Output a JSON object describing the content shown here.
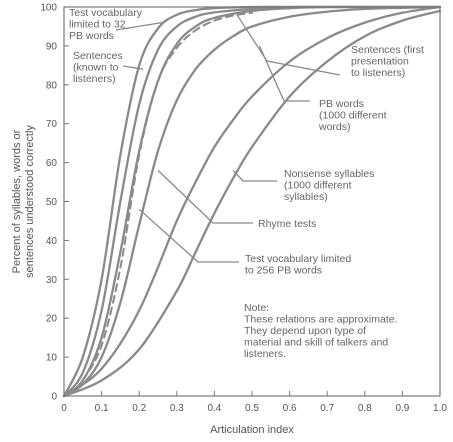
{
  "chart_data": {
    "type": "line",
    "title": "",
    "xlabel": "Articulation index",
    "ylabel_lines": [
      "Percent of syllables, words or",
      "sentences understood correctly"
    ],
    "xlim": [
      0,
      1.0
    ],
    "ylim": [
      0,
      100
    ],
    "x_ticks": [
      "0",
      "0.1",
      "0.2",
      "0.3",
      "0.4",
      "0.5",
      "0.6",
      "0.7",
      "0.8",
      "0.9",
      "1.0"
    ],
    "y_ticks": [
      "0",
      "10",
      "20",
      "30",
      "40",
      "50",
      "60",
      "70",
      "80",
      "90",
      "100"
    ],
    "grid": false,
    "series": [
      {
        "key": "vocab32",
        "style": "solid",
        "x": [
          0,
          0.05,
          0.1,
          0.15,
          0.2,
          0.25,
          0.3,
          0.35,
          0.4,
          0.5,
          0.6,
          0.7,
          0.8,
          1.0
        ],
        "y": [
          0,
          10,
          30,
          62,
          85,
          94.5,
          98,
          99.2,
          99.7,
          100,
          100,
          100,
          100,
          100
        ]
      },
      {
        "key": "sentences_known",
        "style": "solid",
        "x": [
          0,
          0.05,
          0.1,
          0.15,
          0.2,
          0.25,
          0.3,
          0.35,
          0.4,
          0.5,
          0.6,
          0.7,
          0.8,
          1.0
        ],
        "y": [
          0,
          6,
          22,
          50,
          75,
          89,
          95,
          97.5,
          98.6,
          99.5,
          100,
          100,
          100,
          100
        ]
      },
      {
        "key": "sentences_first",
        "style": "solid",
        "x": [
          0,
          0.05,
          0.1,
          0.15,
          0.2,
          0.25,
          0.3,
          0.35,
          0.4,
          0.5,
          0.6,
          0.7,
          0.8,
          1.0
        ],
        "y": [
          0,
          4,
          15,
          37,
          63,
          81,
          90.5,
          95,
          97.2,
          99,
          99.7,
          100,
          100,
          100
        ]
      },
      {
        "key": "rhyme",
        "style": "dashed",
        "x": [
          0.05,
          0.1,
          0.15,
          0.2,
          0.25,
          0.3,
          0.35,
          0.4,
          0.45,
          0.5
        ],
        "y": [
          4,
          13,
          33,
          62,
          81,
          89.5,
          94,
          96.5,
          97.8,
          98.5
        ]
      },
      {
        "key": "pb1000",
        "style": "solid",
        "x": [
          0,
          0.05,
          0.1,
          0.15,
          0.2,
          0.25,
          0.3,
          0.35,
          0.4,
          0.45,
          0.5,
          0.6,
          0.7,
          0.8,
          0.9,
          1.0
        ],
        "y": [
          0,
          3,
          10,
          24,
          44,
          63,
          76,
          84,
          89,
          92.5,
          95,
          97.5,
          98.8,
          99.5,
          99.8,
          100
        ]
      },
      {
        "key": "vocab256",
        "style": "solid",
        "x": [
          0,
          0.1,
          0.2,
          0.3,
          0.35,
          0.4,
          0.45,
          0.5,
          0.6,
          0.7,
          0.8,
          0.9,
          1.0
        ],
        "y": [
          0,
          7,
          22,
          45,
          55,
          64,
          71,
          77,
          86,
          92,
          96,
          98.5,
          100
        ]
      },
      {
        "key": "nonsense",
        "style": "solid",
        "x": [
          0,
          0.1,
          0.2,
          0.3,
          0.35,
          0.4,
          0.45,
          0.5,
          0.6,
          0.7,
          0.8,
          0.9,
          1.0
        ],
        "y": [
          0,
          4,
          12,
          27,
          37,
          47,
          56,
          64,
          77,
          86,
          92.5,
          96.5,
          99
        ]
      }
    ],
    "annotations": [
      {
        "key": "vocab32",
        "lines": [
          "Test vocabulary",
          "limited to 32",
          "PB words"
        ],
        "target": [
          0.26,
          96
        ]
      },
      {
        "key": "sentences_known",
        "lines": [
          "Sentences",
          "(known to",
          "listeners)"
        ],
        "target": [
          0.21,
          84
        ]
      },
      {
        "key": "sentences_first",
        "lines": [
          "Sentences (first",
          "presentation",
          "to listeners)"
        ],
        "target": [
          0.46,
          98
        ]
      },
      {
        "key": "pb1000",
        "lines": [
          "PB words",
          "(1000 different",
          "words)"
        ],
        "target": [
          0.52,
          90
        ]
      },
      {
        "key": "nonsense",
        "lines": [
          "Nonsense syllables",
          "(1000 different",
          "syllables)"
        ],
        "target": [
          0.45,
          58
        ]
      },
      {
        "key": "rhyme",
        "lines": [
          "Rhyme tests"
        ],
        "target": [
          0.25,
          58
        ]
      },
      {
        "key": "vocab256",
        "lines": [
          "Test vocabulary limited",
          "to 256 PB words"
        ],
        "target": [
          0.2,
          48
        ]
      }
    ],
    "note": {
      "lines": [
        "Note:",
        "These relations are approximate.",
        "They depend upon type of",
        "material and skill of talkers and",
        "listeners."
      ]
    }
  }
}
